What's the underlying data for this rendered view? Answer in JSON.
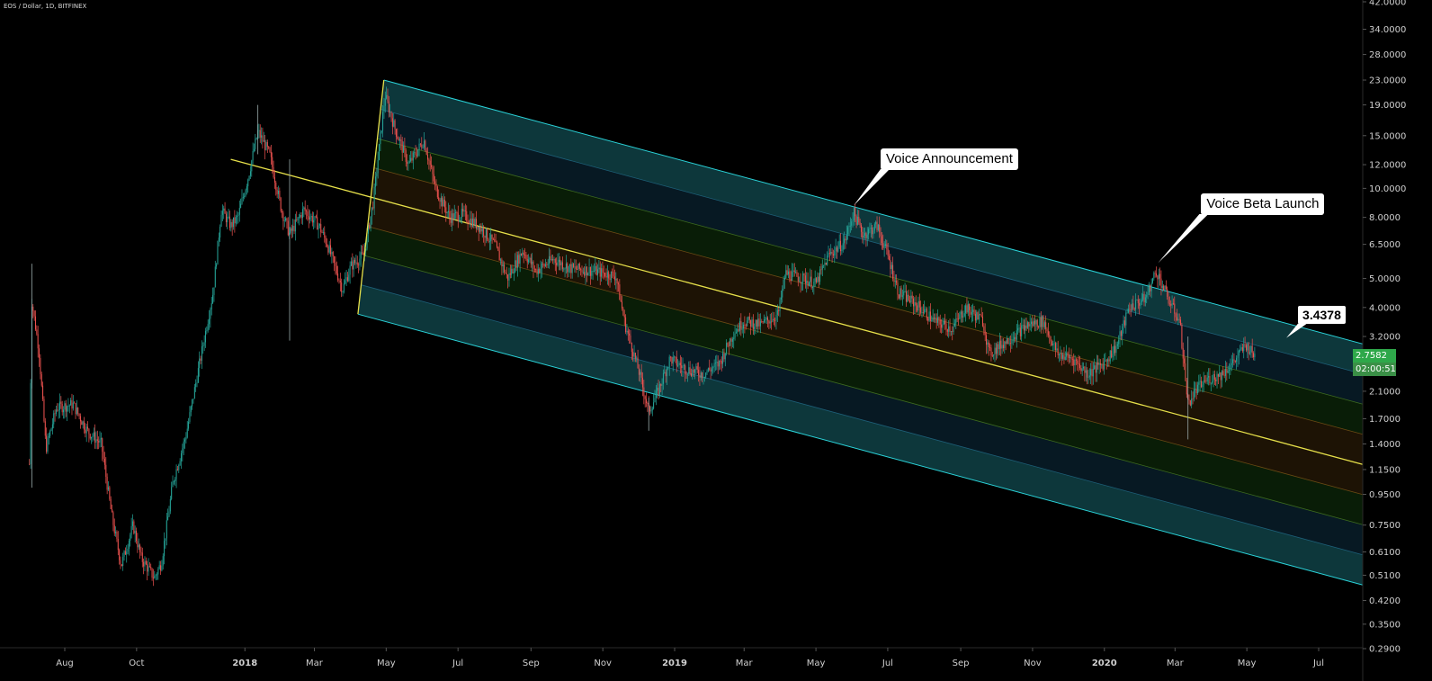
{
  "title": "EOS / Dollar, 1D, BITFINEX",
  "colors": {
    "background": "#000000",
    "up_candle": "#26a69a",
    "down_candle": "#ef5350",
    "channel_outer_fill": "#0e3a3e",
    "channel_inner_fill": "#071a25",
    "channel_green_fill": "#0a1f07",
    "channel_core_fill": "#1f1405",
    "channel_edge_line": "#2ad2d8",
    "median_line": "#e6e04a",
    "axis_text": "#d0d0d0",
    "last_price_bg": "#2ea84a",
    "timer_bg": "#3a8f46"
  },
  "callouts": {
    "voice_announcement": "Voice Announcement",
    "voice_beta_launch": "Voice Beta Launch",
    "channel_value": "3.4378"
  },
  "price_tags": {
    "last_price": "2.7582",
    "countdown": "02:00:51"
  },
  "chart_data": {
    "type": "candlestick",
    "title": "EOS / Dollar, 1D, BITFINEX",
    "y_scale": "log",
    "y_ticks": [
      "42.0000",
      "34.0000",
      "28.0000",
      "23.0000",
      "19.0000",
      "15.0000",
      "12.0000",
      "10.0000",
      "8.0000",
      "6.5000",
      "5.0000",
      "4.0000",
      "3.2000",
      "2.7582",
      "2.1000",
      "1.7000",
      "1.4000",
      "1.1500",
      "0.9500",
      "0.7500",
      "0.6100",
      "0.5100",
      "0.4200",
      "0.3500",
      "0.2900"
    ],
    "x_ticks": [
      "Aug",
      "Oct",
      "2018",
      "Mar",
      "May",
      "Jul",
      "Sep",
      "Nov",
      "2019",
      "Mar",
      "May",
      "Jul",
      "Sep",
      "Nov",
      "2020",
      "Mar",
      "May",
      "Jul"
    ],
    "x_range": [
      "2017-07-01",
      "2020-07-31"
    ],
    "y_range": [
      0.29,
      42.0
    ],
    "close_path": [
      {
        "date": "2017-07-02",
        "price": 1.2
      },
      {
        "date": "2017-07-04",
        "price": 4.2
      },
      {
        "date": "2017-07-10",
        "price": 2.9
      },
      {
        "date": "2017-07-16",
        "price": 1.35
      },
      {
        "date": "2017-07-25",
        "price": 1.85
      },
      {
        "date": "2017-08-08",
        "price": 1.9
      },
      {
        "date": "2017-08-20",
        "price": 1.55
      },
      {
        "date": "2017-09-01",
        "price": 1.4
      },
      {
        "date": "2017-09-10",
        "price": 0.8
      },
      {
        "date": "2017-09-18",
        "price": 0.55
      },
      {
        "date": "2017-09-28",
        "price": 0.75
      },
      {
        "date": "2017-10-05",
        "price": 0.58
      },
      {
        "date": "2017-10-16",
        "price": 0.5
      },
      {
        "date": "2017-10-22",
        "price": 0.56
      },
      {
        "date": "2017-11-01",
        "price": 1.05
      },
      {
        "date": "2017-11-12",
        "price": 1.5
      },
      {
        "date": "2017-11-25",
        "price": 2.8
      },
      {
        "date": "2017-12-05",
        "price": 4.5
      },
      {
        "date": "2017-12-12",
        "price": 8.5
      },
      {
        "date": "2017-12-20",
        "price": 7.5
      },
      {
        "date": "2017-12-26",
        "price": 8.0
      },
      {
        "date": "2018-01-04",
        "price": 11.0
      },
      {
        "date": "2018-01-12",
        "price": 15.5
      },
      {
        "date": "2018-01-22",
        "price": 13.0
      },
      {
        "date": "2018-02-01",
        "price": 8.5
      },
      {
        "date": "2018-02-08",
        "price": 7.0
      },
      {
        "date": "2018-02-20",
        "price": 8.5
      },
      {
        "date": "2018-03-05",
        "price": 7.5
      },
      {
        "date": "2018-03-12",
        "price": 6.5
      },
      {
        "date": "2018-03-25",
        "price": 4.6
      },
      {
        "date": "2018-04-01",
        "price": 5.5
      },
      {
        "date": "2018-04-12",
        "price": 6.0
      },
      {
        "date": "2018-04-20",
        "price": 9.0
      },
      {
        "date": "2018-04-30",
        "price": 20.5
      },
      {
        "date": "2018-05-08",
        "price": 16.0
      },
      {
        "date": "2018-05-20",
        "price": 12.0
      },
      {
        "date": "2018-06-02",
        "price": 14.5
      },
      {
        "date": "2018-06-12",
        "price": 10.0
      },
      {
        "date": "2018-06-24",
        "price": 8.0
      },
      {
        "date": "2018-07-05",
        "price": 8.2
      },
      {
        "date": "2018-07-20",
        "price": 7.4
      },
      {
        "date": "2018-08-01",
        "price": 6.5
      },
      {
        "date": "2018-08-12",
        "price": 5.0
      },
      {
        "date": "2018-08-25",
        "price": 6.2
      },
      {
        "date": "2018-09-05",
        "price": 5.3
      },
      {
        "date": "2018-09-20",
        "price": 5.8
      },
      {
        "date": "2018-10-05",
        "price": 5.4
      },
      {
        "date": "2018-10-25",
        "price": 5.3
      },
      {
        "date": "2018-11-12",
        "price": 5.1
      },
      {
        "date": "2018-11-20",
        "price": 3.5
      },
      {
        "date": "2018-12-01",
        "price": 2.5
      },
      {
        "date": "2018-12-10",
        "price": 1.8
      },
      {
        "date": "2018-12-18",
        "price": 2.1
      },
      {
        "date": "2018-12-28",
        "price": 2.7
      },
      {
        "date": "2019-01-10",
        "price": 2.5
      },
      {
        "date": "2019-01-25",
        "price": 2.4
      },
      {
        "date": "2019-02-08",
        "price": 2.6
      },
      {
        "date": "2019-02-20",
        "price": 3.3
      },
      {
        "date": "2019-03-01",
        "price": 3.6
      },
      {
        "date": "2019-03-15",
        "price": 3.5
      },
      {
        "date": "2019-03-30",
        "price": 3.8
      },
      {
        "date": "2019-04-05",
        "price": 5.2
      },
      {
        "date": "2019-04-20",
        "price": 5.0
      },
      {
        "date": "2019-05-01",
        "price": 4.8
      },
      {
        "date": "2019-05-12",
        "price": 6.0
      },
      {
        "date": "2019-05-25",
        "price": 6.6
      },
      {
        "date": "2019-06-02",
        "price": 8.3
      },
      {
        "date": "2019-06-10",
        "price": 7.0
      },
      {
        "date": "2019-06-22",
        "price": 7.5
      },
      {
        "date": "2019-07-02",
        "price": 5.8
      },
      {
        "date": "2019-07-10",
        "price": 4.5
      },
      {
        "date": "2019-07-25",
        "price": 4.1
      },
      {
        "date": "2019-08-10",
        "price": 3.6
      },
      {
        "date": "2019-08-25",
        "price": 3.4
      },
      {
        "date": "2019-09-05",
        "price": 4.0
      },
      {
        "date": "2019-09-20",
        "price": 3.6
      },
      {
        "date": "2019-09-25",
        "price": 2.8
      },
      {
        "date": "2019-10-10",
        "price": 3.1
      },
      {
        "date": "2019-10-28",
        "price": 3.5
      },
      {
        "date": "2019-11-10",
        "price": 3.6
      },
      {
        "date": "2019-11-22",
        "price": 2.8
      },
      {
        "date": "2019-12-05",
        "price": 2.7
      },
      {
        "date": "2019-12-18",
        "price": 2.4
      },
      {
        "date": "2019-12-31",
        "price": 2.6
      },
      {
        "date": "2020-01-12",
        "price": 3.0
      },
      {
        "date": "2020-01-22",
        "price": 4.0
      },
      {
        "date": "2020-02-05",
        "price": 4.3
      },
      {
        "date": "2020-02-14",
        "price": 5.3
      },
      {
        "date": "2020-02-25",
        "price": 4.2
      },
      {
        "date": "2020-03-05",
        "price": 3.6
      },
      {
        "date": "2020-03-12",
        "price": 1.9
      },
      {
        "date": "2020-03-18",
        "price": 2.1
      },
      {
        "date": "2020-03-28",
        "price": 2.3
      },
      {
        "date": "2020-04-10",
        "price": 2.4
      },
      {
        "date": "2020-04-22",
        "price": 2.7
      },
      {
        "date": "2020-04-30",
        "price": 3.0
      },
      {
        "date": "2020-05-08",
        "price": 2.75
      }
    ],
    "pitchfork": {
      "pivot_a": {
        "date": "2017-12-20",
        "price": 12.5
      },
      "pivot_b": {
        "date": "2018-04-29",
        "price": 23.0
      },
      "pivot_c": {
        "date": "2018-04-07",
        "price": 3.8
      },
      "bands": [
        -1.0,
        -0.75,
        -0.5,
        -0.25,
        0,
        0.25,
        0.5,
        0.75,
        1.0
      ]
    },
    "annotations": [
      {
        "text": "Voice Announcement",
        "date": "2019-06-02",
        "price": 8.4
      },
      {
        "text": "Voice Beta Launch",
        "date": "2020-02-14",
        "price": 5.4
      },
      {
        "text": "3.4378",
        "date": "2020-06-15",
        "price": 3.4378
      }
    ],
    "last_price": 2.7582,
    "grid": false
  }
}
